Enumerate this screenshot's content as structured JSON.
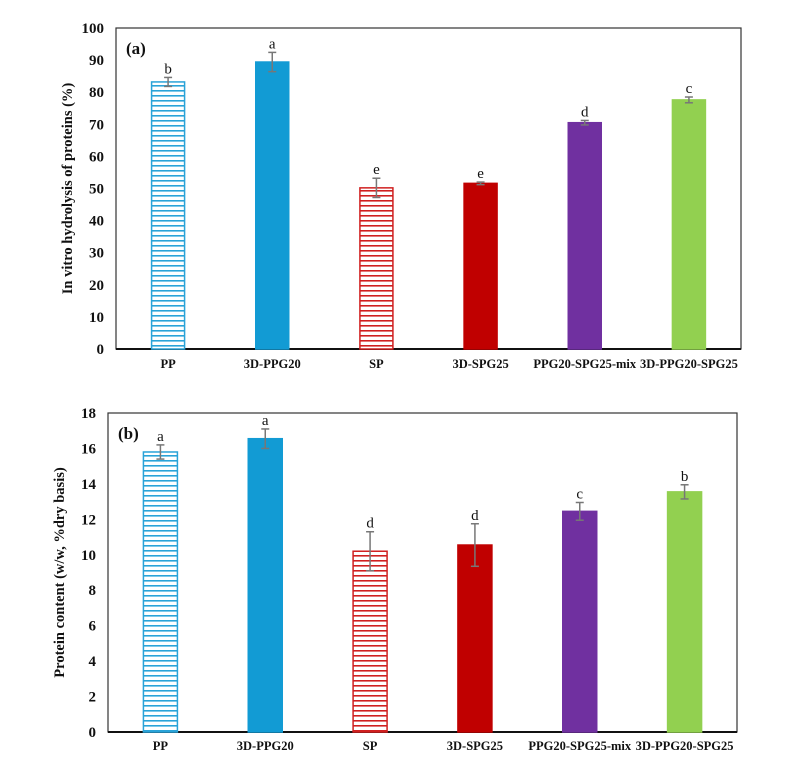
{
  "chart_data": [
    {
      "type": "bar",
      "panel_label": "(a)",
      "title": "",
      "xlabel": "",
      "ylabel": "In vitro hydrolysis of proteins (%)",
      "ylim": [
        0,
        100
      ],
      "yticks": [
        0,
        10,
        20,
        30,
        40,
        50,
        60,
        70,
        80,
        90,
        100
      ],
      "grid": false,
      "categories": [
        "PP",
        "3D-PPG20",
        "SP",
        "3D-SPG25",
        "PPG20-SPG25-mix",
        "3D-PPG20-SPG25"
      ],
      "values": [
        83.2,
        89.4,
        50.2,
        51.6,
        70.5,
        77.6
      ],
      "errors": [
        1.4,
        3.0,
        3.0,
        0.4,
        0.7,
        0.9
      ],
      "significance": [
        "b",
        "a",
        "e",
        "e",
        "d",
        "c"
      ],
      "colors": [
        "#1b9fd6",
        "#129bd4",
        "#c00000",
        "#c00000",
        "#7030a0",
        "#92d050"
      ],
      "patterns": [
        "horizontal-hatch",
        "solid",
        "horizontal-hatch",
        "solid",
        "solid",
        "solid"
      ]
    },
    {
      "type": "bar",
      "panel_label": "(b)",
      "title": "",
      "xlabel": "",
      "ylabel": "Protein content (w/w, %dry basis)",
      "ylim": [
        0,
        18
      ],
      "yticks": [
        0,
        2,
        4,
        6,
        8,
        10,
        12,
        14,
        16,
        18
      ],
      "grid": false,
      "categories": [
        "PP",
        "3D-PPG20",
        "SP",
        "3D-SPG25",
        "PPG20-SPG25-mix",
        "3D-PPG20-SPG25"
      ],
      "values": [
        15.8,
        16.55,
        10.2,
        10.55,
        12.45,
        13.55
      ],
      "errors": [
        0.4,
        0.55,
        1.1,
        1.2,
        0.5,
        0.4
      ],
      "significance": [
        "a",
        "a",
        "d",
        "d",
        "c",
        "b"
      ],
      "colors": [
        "#1b9fd6",
        "#129bd4",
        "#c00000",
        "#c00000",
        "#7030a0",
        "#92d050"
      ],
      "patterns": [
        "horizontal-hatch",
        "solid",
        "horizontal-hatch",
        "solid",
        "solid",
        "solid"
      ]
    }
  ]
}
